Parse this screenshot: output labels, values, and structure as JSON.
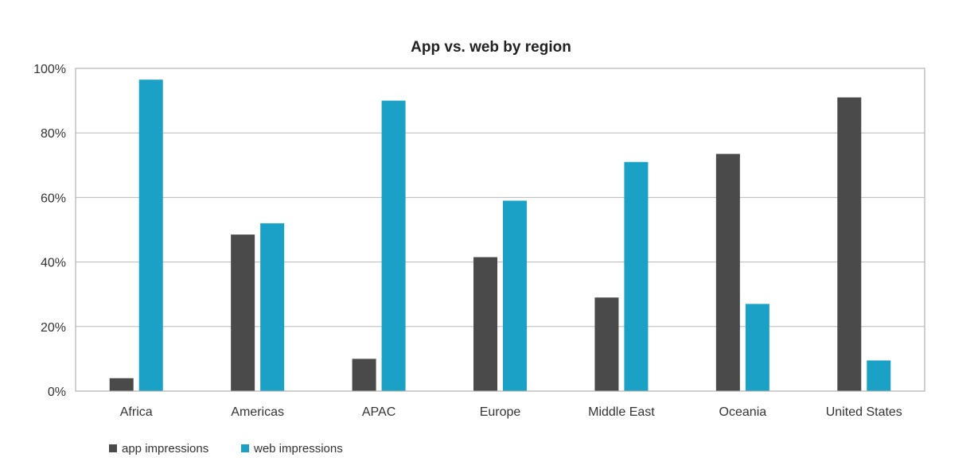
{
  "chart_data": {
    "type": "bar",
    "title": "App vs. web by region",
    "categories": [
      "Africa",
      "Americas",
      "APAC",
      "Europe",
      "Middle East",
      "Oceania",
      "United States"
    ],
    "series": [
      {
        "name": "app impressions",
        "color": "#4a4a4a",
        "values": [
          4,
          48.5,
          10,
          41.5,
          29,
          73.5,
          91
        ]
      },
      {
        "name": "web impressions",
        "color": "#1ba1c5",
        "values": [
          96.5,
          52,
          90,
          59,
          71,
          27,
          9.5
        ]
      }
    ],
    "ylim": [
      0,
      100
    ],
    "yticks": [
      "0%",
      "20%",
      "40%",
      "60%",
      "80%",
      "100%"
    ],
    "ytick_values": [
      0,
      20,
      40,
      60,
      80,
      100
    ],
    "grid": true,
    "legend_position": "bottom-left"
  }
}
